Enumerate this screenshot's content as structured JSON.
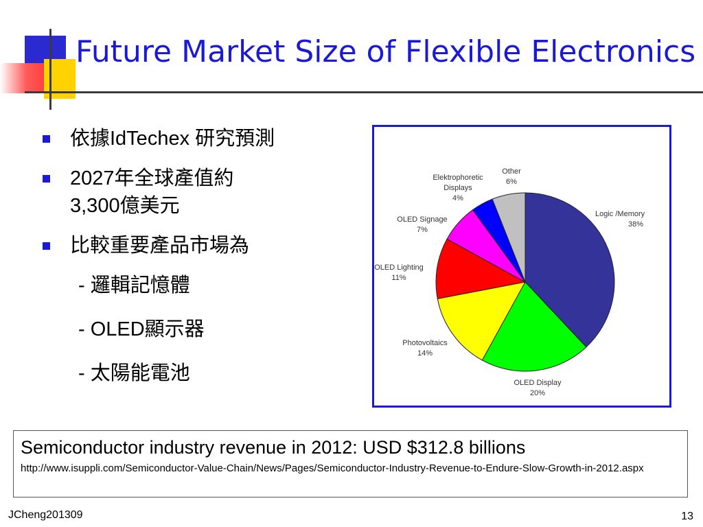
{
  "slide": {
    "title": "Future Market Size of Flexible Electronics",
    "footer_left": "JCheng201309",
    "page_number": "13"
  },
  "bullets": [
    {
      "text": "依據IdTechex 研究預測"
    },
    {
      "line1": "2027年全球產值約",
      "line2": "3,300億美元"
    },
    {
      "text": "比較重要產品市場為"
    }
  ],
  "sub_items": [
    "- 邏輯記憶體",
    "- OLED顯示器",
    "- 太陽能電池"
  ],
  "note": {
    "headline": "Semiconductor industry revenue in 2012: USD $312.8 billions",
    "url": "http://www.isuppli.com/Semiconductor-Value-Chain/News/Pages/Semiconductor-Industry-Revenue-to-Endure-Slow-Growth-in-2012.aspx"
  },
  "chart_data": {
    "type": "pie",
    "slices": [
      {
        "label": "Logic /Memory",
        "pct_label": "38%",
        "value": 38,
        "color": "#333399"
      },
      {
        "label": "OLED Display",
        "pct_label": "20%",
        "value": 20,
        "color": "#00ff00"
      },
      {
        "label": "Photovoltaics",
        "pct_label": "14%",
        "value": 14,
        "color": "#ffff00"
      },
      {
        "label": "OLED Lighting",
        "pct_label": "11%",
        "value": 11,
        "color": "#ff0000"
      },
      {
        "label": "OLED Signage",
        "pct_label": "7%",
        "value": 7,
        "color": "#ff00ff"
      },
      {
        "label": "Elektrophoretic",
        "label2": "Displays",
        "pct_label": "4%",
        "value": 4,
        "color": "#0000ff"
      },
      {
        "label": "Other",
        "pct_label": "6%",
        "value": 6,
        "color": "#c0c0c0"
      }
    ]
  },
  "theme": {
    "accent": "#1a1ad6",
    "deco_red": "#ff6060",
    "deco_yellow": "#ffd200",
    "deco_blue": "#2a2ad0"
  }
}
